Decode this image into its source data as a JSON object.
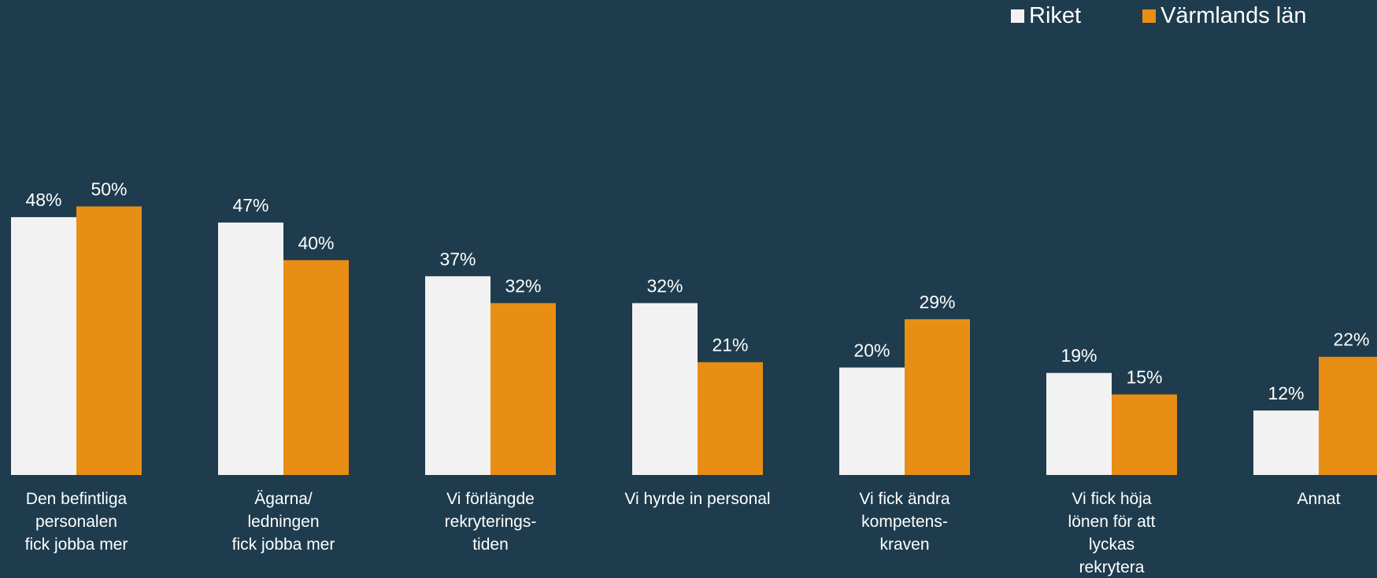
{
  "chart_data": {
    "type": "bar",
    "categories": [
      "Den befintliga personalen fick jobba mer",
      "Ägarna/ ledningen fick jobba mer",
      "Vi förlängde rekryterings-tiden",
      "Vi hyrde in personal",
      "Vi fick ändra kompetens-kraven",
      "Vi fick höja lönen för att lyckas rekrytera",
      "Annat"
    ],
    "category_labels": [
      "Den befintliga\npersonalen\nfick jobba mer",
      "Ägarna/\nledningen\nfick jobba mer",
      "Vi förlängde\nrekryterings-\ntiden",
      "Vi hyrde in personal",
      "Vi fick ändra\nkompetens-\nkraven",
      "Vi fick höja\nlönen för att\nlyckas\nrekrytera",
      "Annat"
    ],
    "series": [
      {
        "name": "Riket",
        "color": "#f2f2f2",
        "values": [
          48,
          47,
          37,
          32,
          20,
          19,
          12
        ],
        "labels": [
          "48%",
          "47%",
          "37%",
          "32%",
          "20%",
          "19%",
          "12%"
        ]
      },
      {
        "name": "Värmlands län",
        "color": "#e88e15",
        "values": [
          50,
          40,
          32,
          21,
          29,
          15,
          22
        ],
        "labels": [
          "50%",
          "40%",
          "32%",
          "21%",
          "29%",
          "15%",
          "22%"
        ]
      }
    ],
    "value_unit": "%",
    "ylim": [
      0,
      88
    ],
    "grid": false,
    "legend_position": "top-right",
    "title": "",
    "xlabel": "",
    "ylabel": ""
  }
}
